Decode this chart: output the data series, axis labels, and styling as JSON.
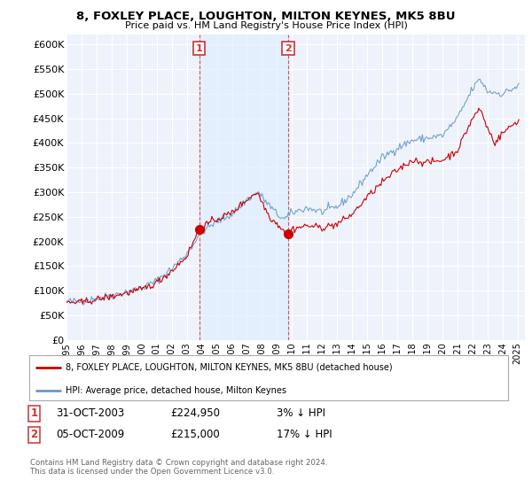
{
  "title_line1": "8, FOXLEY PLACE, LOUGHTON, MILTON KEYNES, MK5 8BU",
  "title_line2": "Price paid vs. HM Land Registry's House Price Index (HPI)",
  "ylim": [
    0,
    620000
  ],
  "yticks": [
    0,
    50000,
    100000,
    150000,
    200000,
    250000,
    300000,
    350000,
    400000,
    450000,
    500000,
    550000,
    600000
  ],
  "ytick_labels": [
    "£0",
    "£50K",
    "£100K",
    "£150K",
    "£200K",
    "£250K",
    "£300K",
    "£350K",
    "£400K",
    "£450K",
    "£500K",
    "£550K",
    "£600K"
  ],
  "background_color": "#ffffff",
  "plot_bg_color": "#eef2fb",
  "grid_color": "#ffffff",
  "hpi_color": "#6699cc",
  "price_color": "#cc0000",
  "shade_color": "#ddeeff",
  "sale1_x": 2003.83,
  "sale1_y": 224950,
  "sale2_x": 2009.75,
  "sale2_y": 215000,
  "legend_line1": "8, FOXLEY PLACE, LOUGHTON, MILTON KEYNES, MK5 8BU (detached house)",
  "legend_line2": "HPI: Average price, detached house, Milton Keynes",
  "footer": "Contains HM Land Registry data © Crown copyright and database right 2024.\nThis data is licensed under the Open Government Licence v3.0.",
  "xmin": 1995.0,
  "xmax": 2025.5
}
